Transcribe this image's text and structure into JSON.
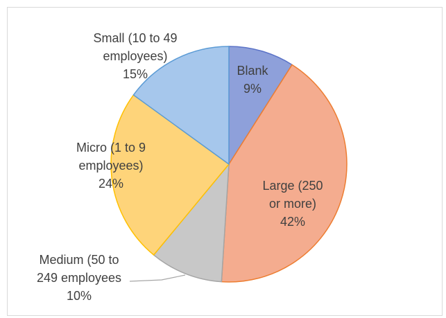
{
  "chart_data": {
    "type": "pie",
    "start_angle_deg": 0,
    "direction": "clockwise",
    "slices": [
      {
        "label": "Blank",
        "value": 9,
        "pct_text": "9%",
        "fill": "#8ea0da",
        "stroke": "#5b73c7"
      },
      {
        "label": "Large (250 or more)",
        "value": 42,
        "pct_text": "42%",
        "fill": "#f4ac8f",
        "stroke": "#ed7d31"
      },
      {
        "label": "Medium (50 to 249 employees",
        "value": 10,
        "pct_text": "10%",
        "fill": "#c8c8c8",
        "stroke": "#a5a5a5"
      },
      {
        "label": "Micro (1 to 9 employees)",
        "value": 24,
        "pct_text": "24%",
        "fill": "#fed47a",
        "stroke": "#ffc000"
      },
      {
        "label": "Small (10 to 49 employees)",
        "value": 15,
        "pct_text": "15%",
        "fill": "#a6c7ec",
        "stroke": "#5b9bd5"
      }
    ],
    "label_lines": [
      [
        "Blank",
        "9%"
      ],
      [
        "Large (250",
        "or more)",
        "42%"
      ],
      [
        "Medium (50 to",
        "249 employees",
        "10%"
      ],
      [
        "Micro (1 to 9",
        "employees)",
        "24%"
      ],
      [
        "Small (10 to 49",
        "employees)",
        "15%"
      ]
    ],
    "legend": "none"
  }
}
